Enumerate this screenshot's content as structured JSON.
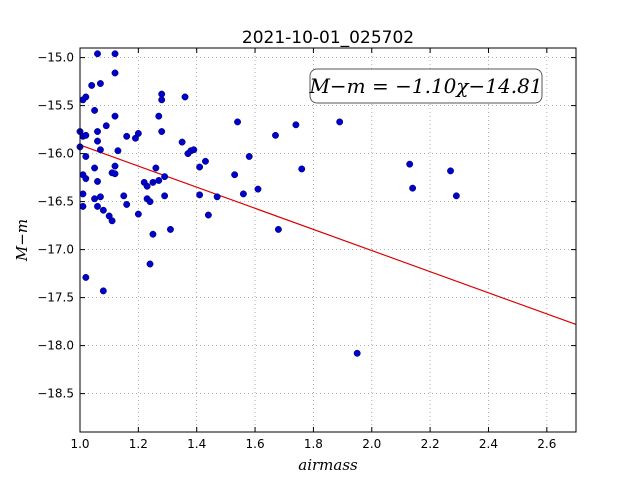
{
  "chart_data": {
    "type": "scatter",
    "title": "2021-10-01_025702",
    "xlabel": "airmass",
    "ylabel": "M−m",
    "xlim": [
      1.0,
      2.7
    ],
    "ylim": [
      -14.9,
      -18.9
    ],
    "y_inverted": true,
    "grid": true,
    "xticks": [
      1.0,
      1.2,
      1.4,
      1.6,
      1.8,
      2.0,
      2.2,
      2.4,
      2.6
    ],
    "xtick_labels": [
      "1.0",
      "1.2",
      "1.4",
      "1.6",
      "1.8",
      "2.0",
      "2.2",
      "2.4",
      "2.6"
    ],
    "yticks": [
      -15.0,
      -15.5,
      -16.0,
      -16.5,
      -17.0,
      -17.5,
      -18.0,
      -18.5
    ],
    "ytick_labels": [
      "−15.0",
      "−15.5",
      "−16.0",
      "−16.5",
      "−17.0",
      "−17.5",
      "−18.0",
      "−18.5"
    ],
    "annotation": "M−m = −1.10χ−14.81",
    "colors": {
      "points": "#0000cc",
      "fit_line": "#dd0000",
      "grid": "#999999"
    },
    "fit": {
      "slope": -1.1,
      "intercept": -14.81
    },
    "points": [
      [
        1.0,
        -15.77
      ],
      [
        1.0,
        -15.93
      ],
      [
        1.01,
        -15.82
      ],
      [
        1.01,
        -16.22
      ],
      [
        1.01,
        -16.42
      ],
      [
        1.01,
        -16.55
      ],
      [
        1.01,
        -15.44
      ],
      [
        1.02,
        -15.41
      ],
      [
        1.02,
        -16.03
      ],
      [
        1.02,
        -15.81
      ],
      [
        1.02,
        -16.26
      ],
      [
        1.02,
        -17.29
      ],
      [
        1.04,
        -15.29
      ],
      [
        1.05,
        -15.55
      ],
      [
        1.05,
        -16.15
      ],
      [
        1.05,
        -16.47
      ],
      [
        1.06,
        -14.96
      ],
      [
        1.06,
        -15.87
      ],
      [
        1.06,
        -15.77
      ],
      [
        1.06,
        -16.29
      ],
      [
        1.06,
        -16.55
      ],
      [
        1.07,
        -15.27
      ],
      [
        1.07,
        -15.96
      ],
      [
        1.07,
        -16.45
      ],
      [
        1.08,
        -16.59
      ],
      [
        1.08,
        -17.43
      ],
      [
        1.09,
        -15.71
      ],
      [
        1.1,
        -16.65
      ],
      [
        1.11,
        -16.7
      ],
      [
        1.11,
        -16.2
      ],
      [
        1.12,
        -14.96
      ],
      [
        1.12,
        -15.16
      ],
      [
        1.12,
        -15.61
      ],
      [
        1.12,
        -16.13
      ],
      [
        1.12,
        -16.21
      ],
      [
        1.13,
        -15.97
      ],
      [
        1.15,
        -16.44
      ],
      [
        1.16,
        -16.53
      ],
      [
        1.16,
        -15.82
      ],
      [
        1.19,
        -15.84
      ],
      [
        1.2,
        -15.79
      ],
      [
        1.2,
        -16.63
      ],
      [
        1.22,
        -16.3
      ],
      [
        1.23,
        -16.34
      ],
      [
        1.23,
        -16.47
      ],
      [
        1.24,
        -16.5
      ],
      [
        1.24,
        -17.15
      ],
      [
        1.25,
        -16.3
      ],
      [
        1.25,
        -16.84
      ],
      [
        1.26,
        -16.15
      ],
      [
        1.27,
        -16.28
      ],
      [
        1.27,
        -15.61
      ],
      [
        1.28,
        -15.38
      ],
      [
        1.28,
        -15.44
      ],
      [
        1.28,
        -15.77
      ],
      [
        1.29,
        -16.24
      ],
      [
        1.29,
        -16.44
      ],
      [
        1.31,
        -16.79
      ],
      [
        1.35,
        -15.88
      ],
      [
        1.36,
        -15.41
      ],
      [
        1.37,
        -16.0
      ],
      [
        1.38,
        -15.97
      ],
      [
        1.39,
        -15.96
      ],
      [
        1.41,
        -16.14
      ],
      [
        1.41,
        -16.43
      ],
      [
        1.43,
        -16.08
      ],
      [
        1.44,
        -16.64
      ],
      [
        1.47,
        -16.45
      ],
      [
        1.53,
        -16.22
      ],
      [
        1.54,
        -15.67
      ],
      [
        1.56,
        -16.42
      ],
      [
        1.58,
        -16.03
      ],
      [
        1.61,
        -16.37
      ],
      [
        1.67,
        -15.81
      ],
      [
        1.68,
        -16.79
      ],
      [
        1.74,
        -15.7
      ],
      [
        1.76,
        -16.16
      ],
      [
        1.89,
        -15.67
      ],
      [
        1.95,
        -18.08
      ],
      [
        2.13,
        -16.11
      ],
      [
        2.14,
        -16.36
      ],
      [
        2.27,
        -16.18
      ],
      [
        2.29,
        -16.44
      ]
    ]
  }
}
